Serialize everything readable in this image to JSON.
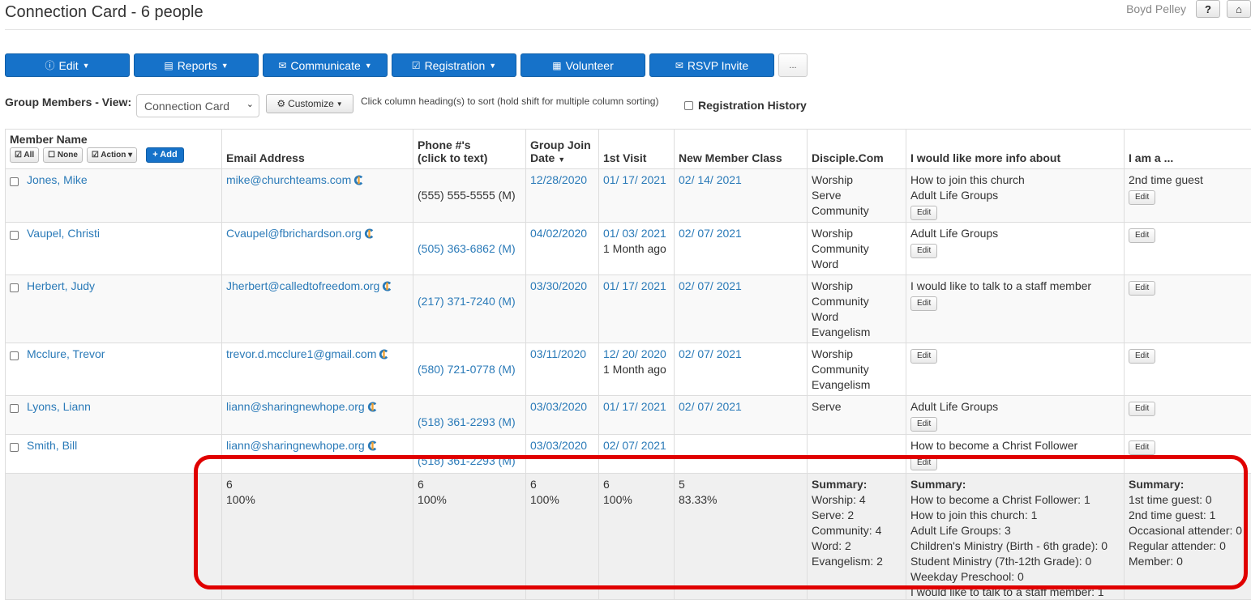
{
  "page": {
    "title": "Connection Card - 6 people",
    "user": "Boyd Pelley"
  },
  "toolbar": [
    {
      "label": "Edit",
      "icon": "ⓘ",
      "caret": true
    },
    {
      "label": "Reports",
      "icon": "▤",
      "caret": true
    },
    {
      "label": "Communicate",
      "icon": "✉",
      "caret": true
    },
    {
      "label": "Registration",
      "icon": "☑",
      "caret": true
    },
    {
      "label": "Volunteer",
      "icon": "▦",
      "caret": false
    },
    {
      "label": "RSVP Invite",
      "icon": "✉",
      "caret": false
    }
  ],
  "more_label": "...",
  "view": {
    "label": "Group Members - View:",
    "selected": "Connection Card",
    "customize": "Customize",
    "hint": "Click column heading(s) to sort (hold shift for multiple column sorting)",
    "registration_history": "Registration History"
  },
  "member_header": {
    "title": "Member Name",
    "all": "All",
    "none": "None",
    "action": "Action",
    "add": "Add"
  },
  "columns": {
    "email": "Email Address",
    "phone1": "Phone #'s",
    "phone2": "(click to text)",
    "join1": "Group Join",
    "join2": "Date",
    "visit": "1st Visit",
    "nmc": "New Member Class",
    "disciple": "Disciple.Com",
    "info": "I would like more info about",
    "iam": "I am a ..."
  },
  "edit_label": "Edit",
  "rows": [
    {
      "name": "Jones, Mike",
      "email": "mike@churchteams.com",
      "phone": "(555) 555-5555 (M)",
      "join": "12/28/2020",
      "visit": "01/ 17/ 2021",
      "visit_note": "",
      "nmc": "02/ 14/ 2021",
      "disciple": [
        "Worship",
        "Serve",
        "Community"
      ],
      "info": [
        "How to join this church",
        "Adult Life Groups"
      ],
      "iam": "2nd time guest"
    },
    {
      "name": "Vaupel, Christi",
      "email": "Cvaupel@fbrichardson.org",
      "phone": "(505) 363-6862 (M)",
      "join": "04/02/2020",
      "visit": "01/ 03/ 2021",
      "visit_note": "1 Month ago",
      "nmc": "02/ 07/ 2021",
      "disciple": [
        "Worship",
        "Community",
        "Word"
      ],
      "info": [
        "Adult Life Groups"
      ],
      "iam": ""
    },
    {
      "name": "Herbert, Judy",
      "email": "Jherbert@calledtofreedom.org",
      "phone": "(217) 371-7240 (M)",
      "join": "03/30/2020",
      "visit": "01/ 17/ 2021",
      "visit_note": "",
      "nmc": "02/ 07/ 2021",
      "disciple": [
        "Worship",
        "Community",
        "Word",
        "Evangelism"
      ],
      "info": [
        "I would like to talk to a staff member"
      ],
      "iam": ""
    },
    {
      "name": "Mcclure, Trevor",
      "email": "trevor.d.mcclure1@gmail.com",
      "phone": "(580) 721-0778 (M)",
      "join": "03/11/2020",
      "visit": "12/ 20/ 2020",
      "visit_note": "1 Month ago",
      "nmc": "02/ 07/ 2021",
      "disciple": [
        "Worship",
        "Community",
        "Evangelism"
      ],
      "info": [],
      "iam": ""
    },
    {
      "name": "Lyons, Liann",
      "email": "liann@sharingnewhope.org",
      "phone": "(518) 361-2293 (M)",
      "join": "03/03/2020",
      "visit": "01/ 17/ 2021",
      "visit_note": "",
      "nmc": "02/ 07/ 2021",
      "disciple": [
        "Serve"
      ],
      "info": [
        "Adult Life Groups"
      ],
      "iam": ""
    },
    {
      "name": "Smith, Bill",
      "email": "liann@sharingnewhope.org",
      "phone": "(518) 361-2293 (M)",
      "join": "03/03/2020",
      "visit": "02/ 07/ 2021",
      "visit_note": "",
      "nmc": "",
      "disciple": [],
      "info": [
        "How to become a Christ Follower"
      ],
      "iam": ""
    }
  ],
  "summary": {
    "email": {
      "count": "6",
      "pct": "100%"
    },
    "phone": {
      "count": "6",
      "pct": "100%"
    },
    "join": {
      "count": "6",
      "pct": "100%"
    },
    "visit": {
      "count": "6",
      "pct": "100%"
    },
    "nmc": {
      "count": "5",
      "pct": "83.33%"
    },
    "title": "Summary:",
    "disciple": [
      "Worship: 4",
      "Serve: 2",
      "Community: 4",
      "Word: 2",
      "Evangelism: 2"
    ],
    "info": [
      "How to become a Christ Follower: 1",
      "How to join this church: 1",
      "Adult Life Groups: 3",
      "Children's Ministry (Birth - 6th grade): 0",
      "Student Ministry (7th-12th Grade): 0",
      "Weekday Preschool: 0",
      "I would like to talk to a staff member: 1"
    ],
    "iam": [
      "1st time guest: 0",
      "2nd time guest: 1",
      "Occasional attender: 0",
      "Regular attender: 0",
      "Member: 0"
    ]
  },
  "colors": {
    "primary": "#1672c9",
    "link": "#2a7ab8",
    "highlight": "#e00000"
  }
}
